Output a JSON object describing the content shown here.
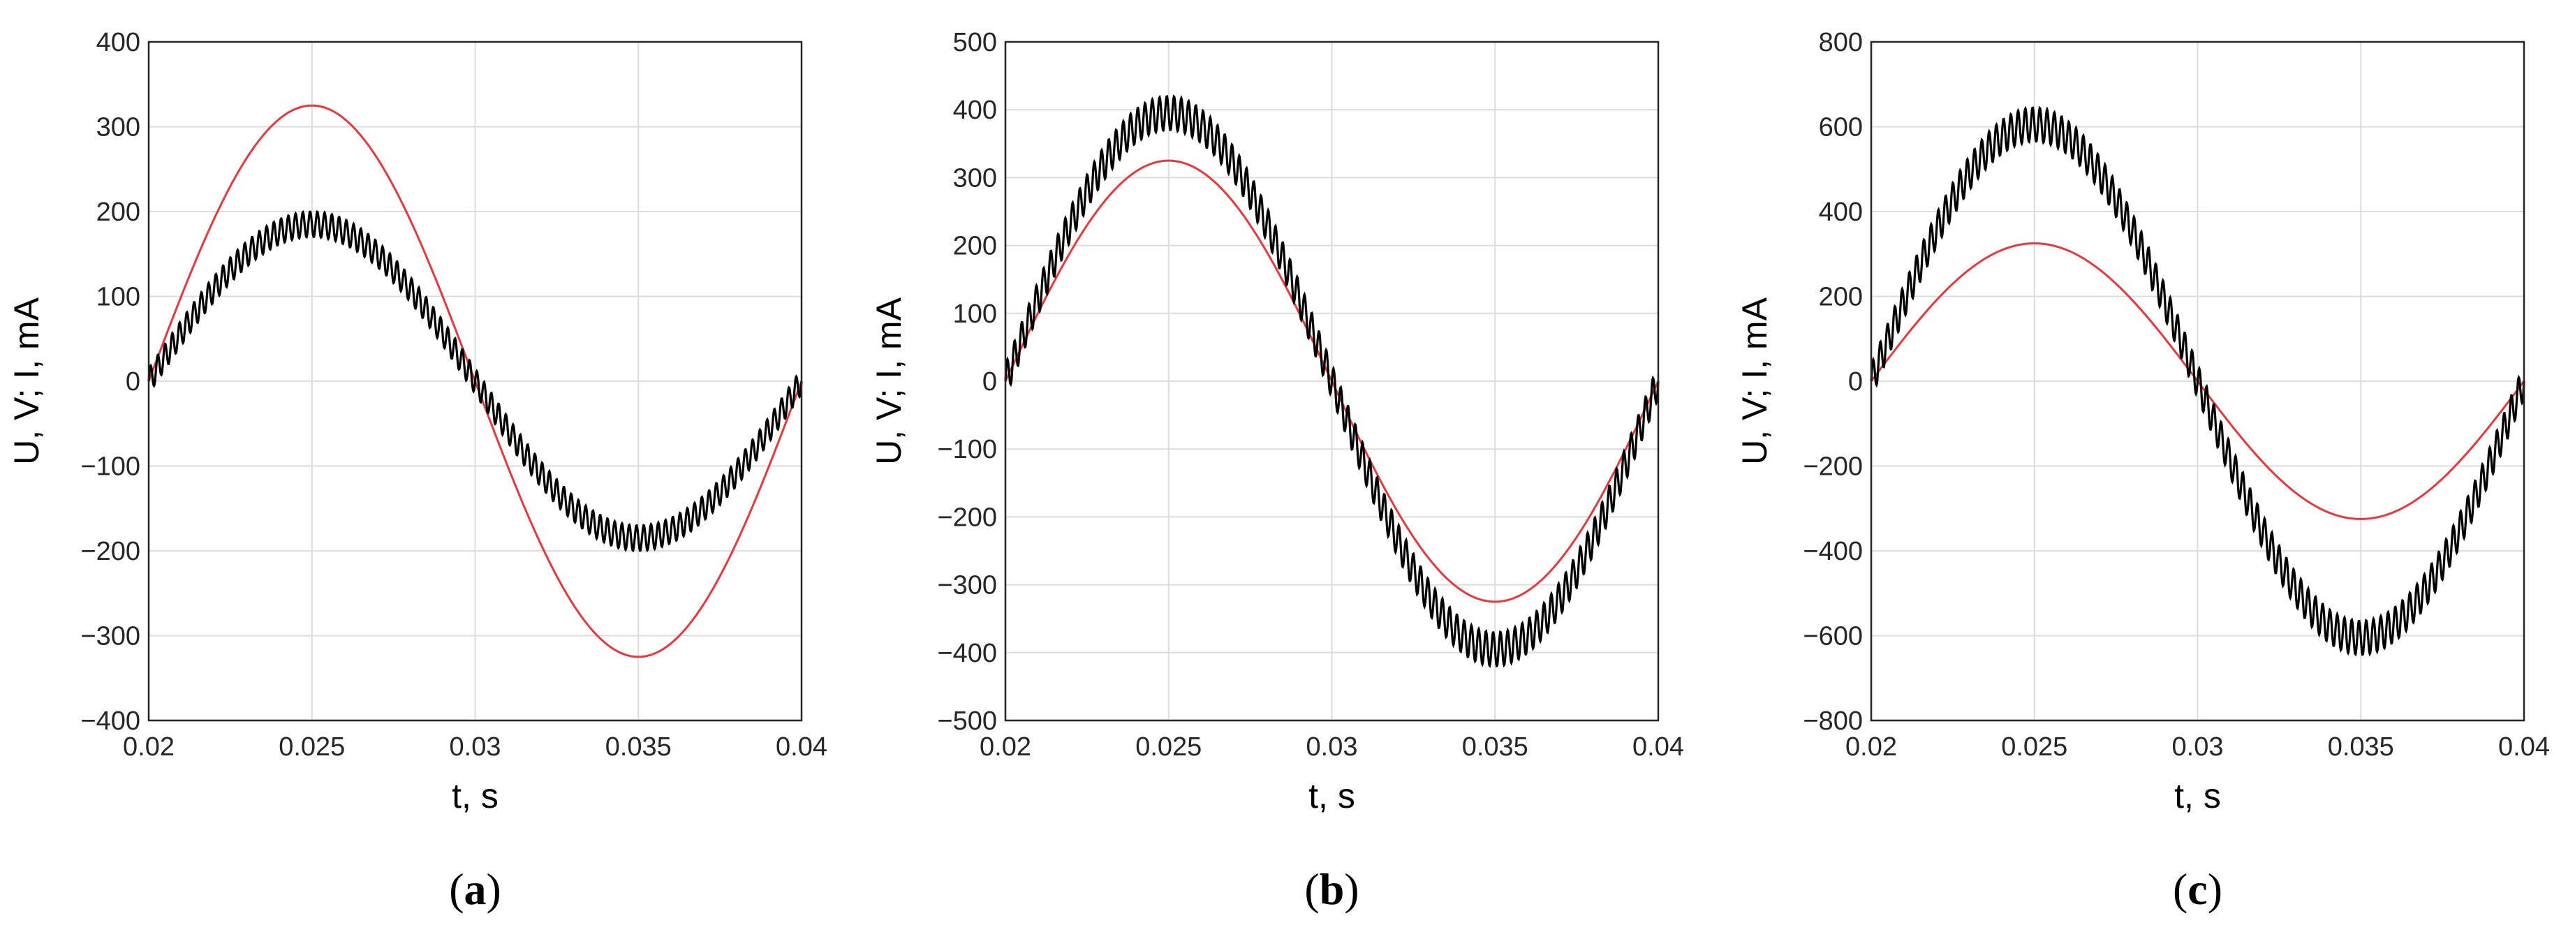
{
  "chart_data": [
    {
      "type": "line",
      "caption_letter": "a",
      "xlabel": "t, s",
      "ylabel": "U, V; I, mA",
      "xlim": [
        0.02,
        0.04
      ],
      "ylim": [
        -400,
        400
      ],
      "x_ticks": [
        "0.02",
        "0.025",
        "0.03",
        "0.035",
        "0.04"
      ],
      "y_ticks": [
        "400",
        "300",
        "200",
        "100",
        "0",
        "−100",
        "−200",
        "−300",
        "−400"
      ],
      "grid": true,
      "series": [
        {
          "color": "#e8383d",
          "amplitude": 325,
          "frequency_hz": 50,
          "ripple": 0,
          "t_start": 0.02,
          "t_end": 0.04
        },
        {
          "color": "#000000",
          "amplitude": 185,
          "frequency_hz": 50,
          "ripple": 15,
          "t_start": 0.02,
          "t_end": 0.04
        }
      ]
    },
    {
      "type": "line",
      "caption_letter": "b",
      "xlabel": "t, s",
      "ylabel": "U, V; I, mA",
      "xlim": [
        0.02,
        0.04
      ],
      "ylim": [
        -500,
        500
      ],
      "x_ticks": [
        "0.02",
        "0.025",
        "0.03",
        "0.035",
        "0.04"
      ],
      "y_ticks": [
        "500",
        "400",
        "300",
        "200",
        "100",
        "0",
        "−100",
        "−200",
        "−300",
        "−400",
        "−500"
      ],
      "grid": true,
      "series": [
        {
          "color": "#e8383d",
          "amplitude": 325,
          "frequency_hz": 50,
          "ripple": 0,
          "t_start": 0.02,
          "t_end": 0.04
        },
        {
          "color": "#000000",
          "amplitude": 395,
          "frequency_hz": 50,
          "ripple": 25,
          "t_start": 0.02,
          "t_end": 0.04
        }
      ]
    },
    {
      "type": "line",
      "caption_letter": "c",
      "xlabel": "t, s",
      "ylabel": "U, V; I, mA",
      "xlim": [
        0.02,
        0.04
      ],
      "ylim": [
        -800,
        800
      ],
      "x_ticks": [
        "0.02",
        "0.025",
        "0.03",
        "0.035",
        "0.04"
      ],
      "y_ticks": [
        "800",
        "600",
        "400",
        "200",
        "0",
        "−200",
        "−400",
        "−600",
        "−800"
      ],
      "grid": true,
      "series": [
        {
          "color": "#e8383d",
          "amplitude": 325,
          "frequency_hz": 50,
          "ripple": 0,
          "t_start": 0.02,
          "t_end": 0.04
        },
        {
          "color": "#000000",
          "amplitude": 605,
          "frequency_hz": 50,
          "ripple": 40,
          "t_start": 0.02,
          "t_end": 0.04
        }
      ]
    }
  ]
}
